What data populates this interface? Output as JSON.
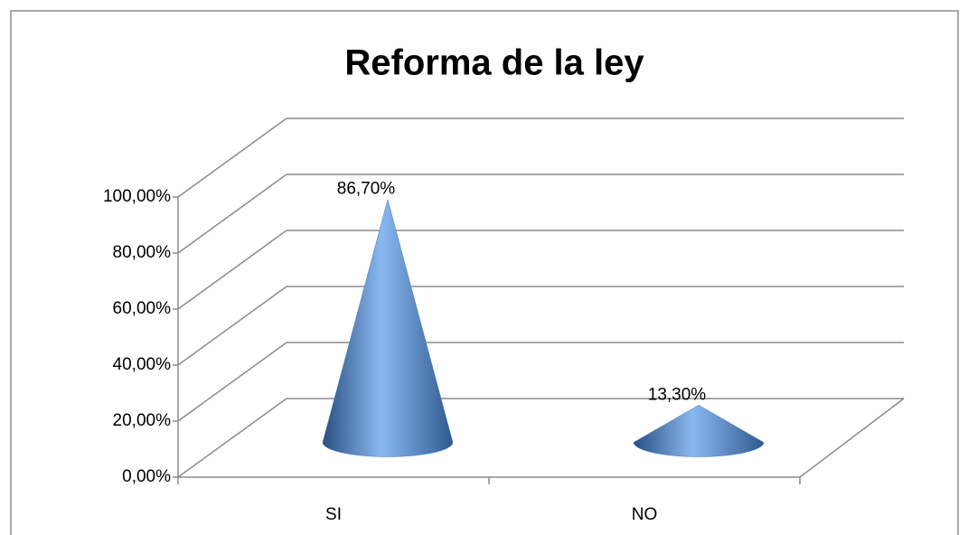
{
  "chart_data": {
    "type": "cone",
    "title": "Reforma de la ley",
    "categories": [
      "SI",
      "NO"
    ],
    "values": [
      86.7,
      13.3
    ],
    "value_labels": [
      "86,70%",
      "13,30%"
    ],
    "color": "#4f81bd",
    "ylim": [
      0,
      100
    ],
    "yticks": [
      {
        "value": 0,
        "label": "0,00%"
      },
      {
        "value": 20,
        "label": "20,00%"
      },
      {
        "value": 40,
        "label": "40,00%"
      },
      {
        "value": 60,
        "label": "60,00%"
      },
      {
        "value": 80,
        "label": "80,00%"
      },
      {
        "value": 100,
        "label": "100,00%"
      }
    ],
    "grid": true
  }
}
